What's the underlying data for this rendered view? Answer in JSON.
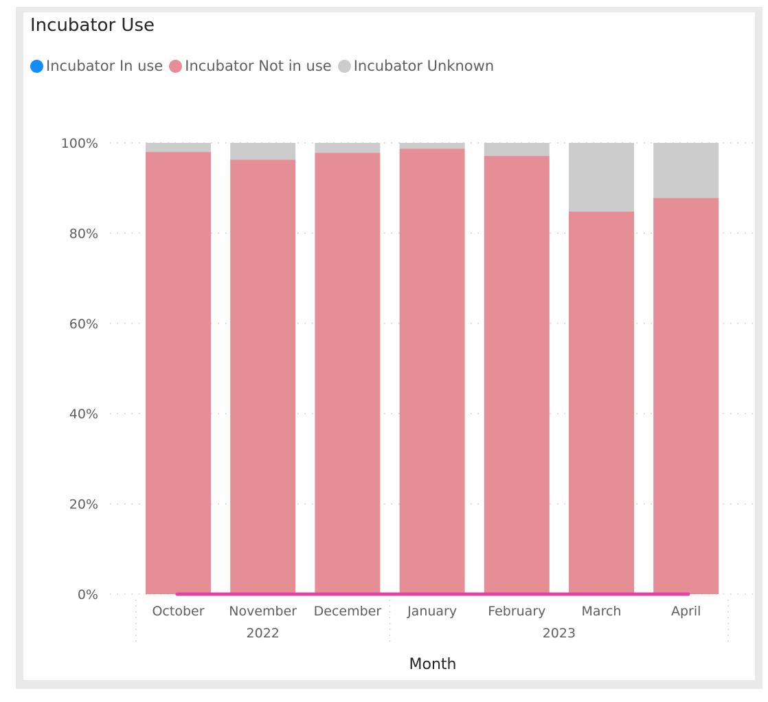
{
  "chart_data": {
    "type": "bar",
    "stacked": "100%",
    "title": "Incubator Use",
    "xlabel": "Month",
    "ylabel": "",
    "ylim": [
      0,
      1
    ],
    "yticks": [
      "0%",
      "20%",
      "40%",
      "60%",
      "80%",
      "100%"
    ],
    "legend_position": "top-left",
    "grid": "horizontal-dotted",
    "categories": [
      "October",
      "November",
      "December",
      "January",
      "February",
      "March",
      "April"
    ],
    "category_groups": [
      {
        "label": "2022",
        "categories": [
          "October",
          "November",
          "December"
        ]
      },
      {
        "label": "2023",
        "categories": [
          "January",
          "February",
          "March",
          "April"
        ]
      }
    ],
    "series": [
      {
        "name": "Incubator In use",
        "color": "#118dff",
        "values": [
          0.0,
          0.0,
          0.0,
          0.0,
          0.0,
          0.0,
          0.0
        ]
      },
      {
        "name": "Incubator Not in use",
        "color": "#e68e96",
        "values": [
          0.98,
          0.963,
          0.978,
          0.987,
          0.971,
          0.848,
          0.878
        ]
      },
      {
        "name": "Incubator Unknown",
        "color": "#cccccc",
        "values": [
          0.02,
          0.037,
          0.022,
          0.013,
          0.029,
          0.152,
          0.122
        ]
      }
    ]
  }
}
